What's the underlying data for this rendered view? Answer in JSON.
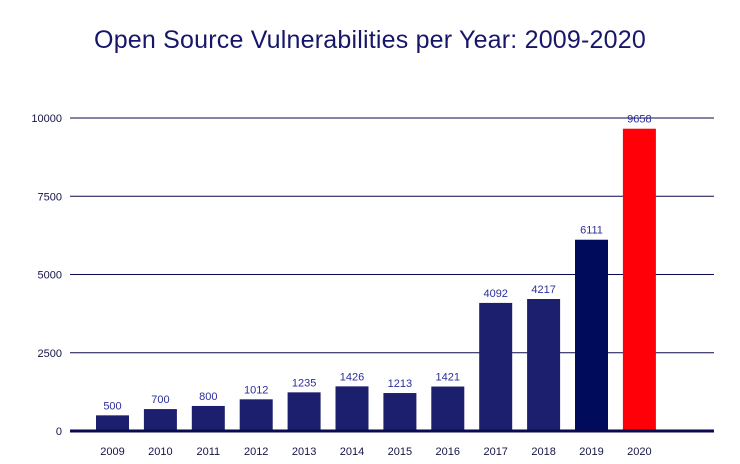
{
  "chart_data": {
    "type": "bar",
    "title": "Open Source Vulnerabilities per Year: 2009-2020",
    "xlabel": "",
    "ylabel": "",
    "categories": [
      "2009",
      "2010",
      "2011",
      "2012",
      "2013",
      "2014",
      "2015",
      "2016",
      "2017",
      "2018",
      "2019",
      "2020"
    ],
    "values": [
      500,
      700,
      800,
      1012,
      1235,
      1426,
      1213,
      1421,
      4092,
      4217,
      6111,
      9658
    ],
    "data_labels": [
      "500",
      "700",
      "800",
      "1012",
      "1235",
      "1426",
      "1213",
      "1421",
      "4092",
      "4217",
      "6111",
      "9658"
    ],
    "ylim": [
      0,
      10000
    ],
    "y_ticks": [
      0,
      2500,
      5000,
      7500,
      10000
    ],
    "y_tick_labels": [
      "0",
      "2500",
      "5000",
      "7500",
      "10000"
    ],
    "grid": true,
    "legend": "none",
    "colors": {
      "bar_default": "#1b1f6e",
      "bar_2019": "#000b5c",
      "bar_2020": "#ff0008",
      "grid": "#0a0a4e",
      "axis": "#0a0a4e",
      "title": "#16166a",
      "data_label": "#2b2e9b"
    }
  }
}
